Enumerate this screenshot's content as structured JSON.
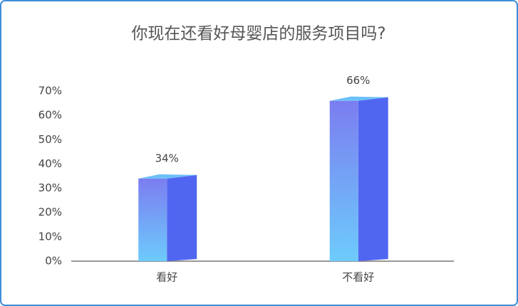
{
  "chart_data": {
    "type": "bar3d",
    "title": "你现在还看好母婴店的服务项目吗?",
    "categories": [
      "看好",
      "不看好"
    ],
    "values": [
      34,
      66
    ],
    "value_labels": [
      "34%",
      "66%"
    ],
    "ylim": [
      0,
      70
    ],
    "yticks": [
      {
        "value": 0,
        "label": "0%"
      },
      {
        "value": 10,
        "label": "10%"
      },
      {
        "value": 20,
        "label": "20%"
      },
      {
        "value": 30,
        "label": "30%"
      },
      {
        "value": 40,
        "label": "40%"
      },
      {
        "value": 50,
        "label": "50%"
      },
      {
        "value": 60,
        "label": "60%"
      },
      {
        "value": 70,
        "label": "70%"
      }
    ],
    "grid": false
  }
}
